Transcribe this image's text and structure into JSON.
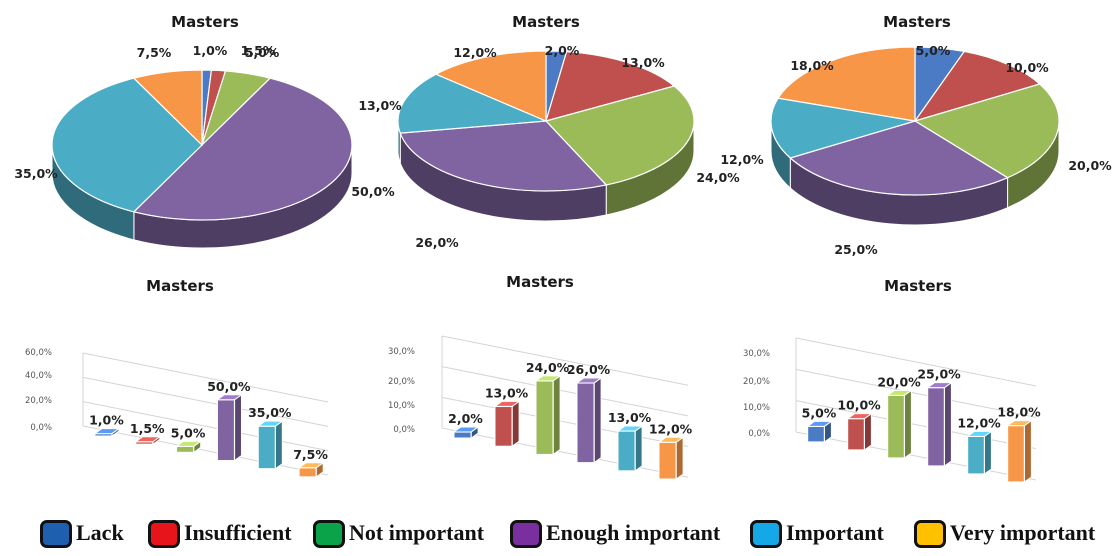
{
  "chart_data": [
    {
      "type": "pie",
      "title": "Masters",
      "categories": [
        "Lack",
        "Insufficient",
        "Not important",
        "Enough important",
        "Important",
        "Very important"
      ],
      "values": [
        1.0,
        1.5,
        5.0,
        50.0,
        35.0,
        7.5
      ],
      "value_labels": [
        "1,0%",
        "1,5%",
        "5,0%",
        "50,0%",
        "35,0%",
        "7,5%"
      ]
    },
    {
      "type": "pie",
      "title": "Masters",
      "categories": [
        "Lack",
        "Insufficient",
        "Not important",
        "Enough important",
        "Important",
        "Very important"
      ],
      "values": [
        2.0,
        13.0,
        24.0,
        26.0,
        13.0,
        12.0
      ],
      "value_labels": [
        "2,0%",
        "13,0%",
        "24,0%",
        "26,0%",
        "13,0%",
        "12,0%"
      ]
    },
    {
      "type": "pie",
      "title": "Masters",
      "categories": [
        "Lack",
        "Insufficient",
        "Not important",
        "Enough important",
        "Important",
        "Very important"
      ],
      "values": [
        5.0,
        10.0,
        20.0,
        25.0,
        12.0,
        18.0
      ],
      "value_labels": [
        "5,0%",
        "10,0%",
        "20,0%",
        "25,0%",
        "12,0%",
        "18,0%"
      ]
    },
    {
      "type": "bar",
      "title": "Masters",
      "categories": [
        "Lack",
        "Insufficient",
        "Not important",
        "Enough important",
        "Important",
        "Very important"
      ],
      "values": [
        1.0,
        1.5,
        5.0,
        50.0,
        35.0,
        7.5
      ],
      "value_labels": [
        "1,0%",
        "1,5%",
        "5,0%",
        "50,0%",
        "35,0%",
        "7,5%"
      ],
      "ylim": [
        0,
        60
      ],
      "yticks": [
        "0,0%",
        "20,0%",
        "40,0%",
        "60,0%"
      ],
      "grid": true
    },
    {
      "type": "bar",
      "title": "Masters",
      "categories": [
        "Lack",
        "Insufficient",
        "Not important",
        "Enough important",
        "Important",
        "Very important"
      ],
      "values": [
        2.0,
        13.0,
        24.0,
        26.0,
        13.0,
        12.0
      ],
      "value_labels": [
        "2,0%",
        "13,0%",
        "24,0%",
        "26,0%",
        "13,0%",
        "12,0%"
      ],
      "ylim": [
        0,
        30
      ],
      "yticks": [
        "0,0%",
        "10,0%",
        "20,0%",
        "30,0%"
      ],
      "grid": true
    },
    {
      "type": "bar",
      "title": "Masters",
      "categories": [
        "Lack",
        "Insufficient",
        "Not important",
        "Enough important",
        "Important",
        "Very important"
      ],
      "values": [
        5.0,
        10.0,
        20.0,
        25.0,
        12.0,
        18.0
      ],
      "value_labels": [
        "5,0%",
        "10,0%",
        "20,0%",
        "25,0%",
        "12,0%",
        "18,0%"
      ],
      "ylim": [
        0,
        30
      ],
      "yticks": [
        "0,0%",
        "10,0%",
        "20,0%",
        "30,0%"
      ],
      "grid": true
    }
  ],
  "colors": {
    "pie": [
      "#4a7bc4",
      "#c0504d",
      "#9bbb59",
      "#8064a2",
      "#4bacc6",
      "#f79646"
    ],
    "legend": [
      "#1f5fb0",
      "#e8141b",
      "#0aa34a",
      "#7a2f9e",
      "#14a8e6",
      "#ffc000"
    ]
  },
  "legend": {
    "position": "bottom",
    "items": [
      "Lack",
      "Insufficient",
      "Not important",
      "Enough important",
      "Important",
      "Very important"
    ]
  }
}
